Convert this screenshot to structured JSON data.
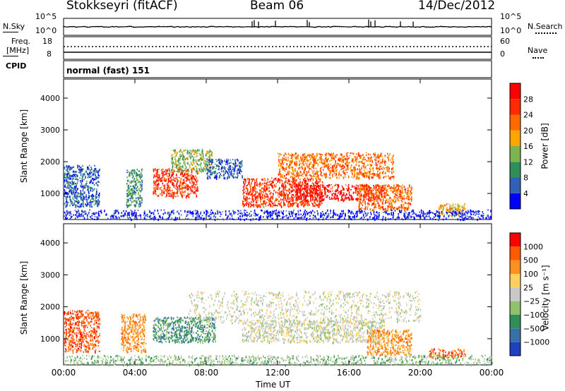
{
  "header": {
    "station": "Stokkseyri (fitACF)",
    "beam": "Beam 06",
    "date": "14/Dec/2012"
  },
  "info_panels": {
    "nsky_label": "N.Sky",
    "nsky_ticks": [
      "10^5",
      "10^0"
    ],
    "nsearch_label": "N.Search",
    "nsearch_ticks": [
      "10^5",
      "10^0"
    ],
    "freq_label": "Freq.",
    "freq_unit": "[MHz]",
    "freq_ticks": [
      "18",
      "8"
    ],
    "nave_label": "Nave",
    "nave_ticks": [
      "60",
      "0"
    ],
    "cpid_label": "CPID",
    "cpid_value": "normal (fast) 151"
  },
  "chart_data": [
    {
      "type": "heatmap",
      "panel": "power",
      "ylabel": "Slant Range [km]",
      "yticks": [
        "4000",
        "3000",
        "2000",
        "1000"
      ],
      "ylim": [
        180,
        4600
      ],
      "colorbar_label": "Power [dB]",
      "colorbar_ticks": [
        "28",
        "24",
        "20",
        "16",
        "12",
        "8",
        "4"
      ],
      "colors": [
        "#0000ff",
        "#3060b8",
        "#2f8f58",
        "#7cb450",
        "#ffa500",
        "#ff6a00",
        "#ff2a00",
        "#ff0000"
      ],
      "regions": [
        {
          "x": [
            0.0,
            2.0
          ],
          "y": [
            600,
            1900
          ],
          "level": 1
        },
        {
          "x": [
            3.5,
            4.4
          ],
          "y": [
            600,
            1800
          ],
          "level": 2
        },
        {
          "x": [
            5.0,
            7.5
          ],
          "y": [
            900,
            1800
          ],
          "level": 6
        },
        {
          "x": [
            6.0,
            8.3
          ],
          "y": [
            1700,
            2400
          ],
          "level": 3
        },
        {
          "x": [
            8.0,
            10.0
          ],
          "y": [
            1500,
            2100
          ],
          "level": 1
        },
        {
          "x": [
            10.0,
            14.5
          ],
          "y": [
            600,
            1500
          ],
          "level": 6
        },
        {
          "x": [
            12.0,
            18.5
          ],
          "y": [
            1500,
            2300
          ],
          "level": 5
        },
        {
          "x": [
            13.0,
            18.0
          ],
          "y": [
            800,
            1300
          ],
          "level": 7
        },
        {
          "x": [
            16.5,
            19.5
          ],
          "y": [
            500,
            1300
          ],
          "level": 5
        },
        {
          "x": [
            21.0,
            22.5
          ],
          "y": [
            300,
            700
          ],
          "level": 4
        },
        {
          "x": [
            0.0,
            24.0
          ],
          "y": [
            200,
            500
          ],
          "level": 0
        }
      ]
    },
    {
      "type": "heatmap",
      "panel": "velocity",
      "xlabel": "Time UT",
      "xticks": [
        "00:00",
        "04:00",
        "08:00",
        "12:00",
        "16:00",
        "20:00",
        "00:00"
      ],
      "xlim": [
        0,
        24
      ],
      "ylabel": "Slant Range [km]",
      "yticks": [
        "4000",
        "3000",
        "2000",
        "1000"
      ],
      "ylim": [
        180,
        4600
      ],
      "colorbar_label": "Velocity [m s⁻¹]",
      "colorbar_ticks": [
        "1000",
        "500",
        "100",
        "25",
        "−25",
        "−100",
        "−500",
        "−1000"
      ],
      "colors": [
        "#2040c0",
        "#3a70a8",
        "#2f8f58",
        "#90c070",
        "#c8c8c8",
        "#ffd060",
        "#ff9020",
        "#ff5a00",
        "#ff0000"
      ],
      "regions": [
        {
          "x": [
            0.0,
            2.0
          ],
          "y": [
            600,
            1900
          ],
          "level": 7
        },
        {
          "x": [
            3.2,
            4.6
          ],
          "y": [
            600,
            1800
          ],
          "level": 6
        },
        {
          "x": [
            5.0,
            8.5
          ],
          "y": [
            900,
            1700
          ],
          "level": 2
        },
        {
          "x": [
            7.0,
            20.0
          ],
          "y": [
            1500,
            2500
          ],
          "level": 4
        },
        {
          "x": [
            10.0,
            18.0
          ],
          "y": [
            900,
            1600
          ],
          "level": 4
        },
        {
          "x": [
            17.0,
            19.5
          ],
          "y": [
            500,
            1300
          ],
          "level": 6
        },
        {
          "x": [
            20.5,
            22.5
          ],
          "y": [
            400,
            700
          ],
          "level": 7
        },
        {
          "x": [
            0.0,
            24.0
          ],
          "y": [
            200,
            500
          ],
          "level": 3
        }
      ]
    }
  ]
}
